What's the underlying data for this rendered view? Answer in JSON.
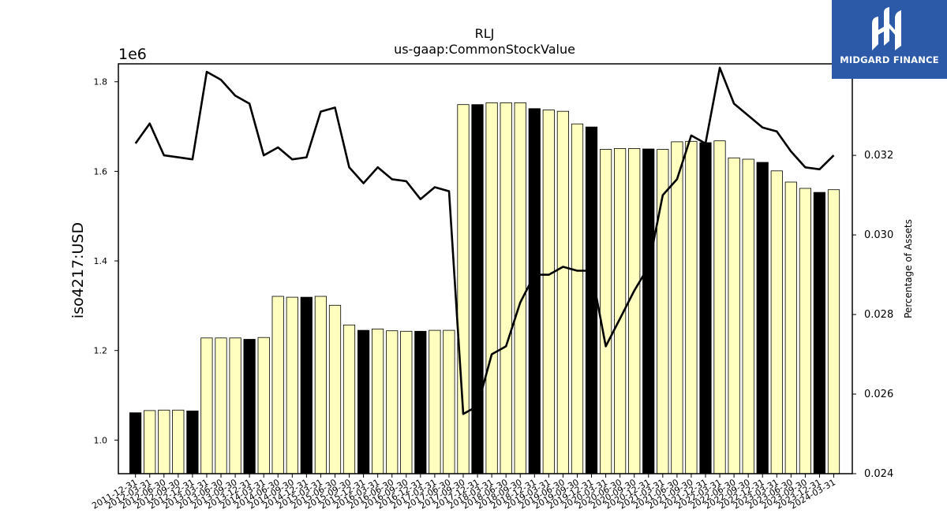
{
  "chart_data": {
    "type": "bar",
    "title": "RLJ",
    "subtitle": "us-gaap:CommonStockValue",
    "ylabel": "iso4217:USD",
    "y_offset_label": "1e6",
    "y2label": "Percentage of Assets",
    "ylim": [
      0.925,
      1.84
    ],
    "y2lim": [
      0.024,
      0.0343
    ],
    "yticks": [
      "1.0",
      "1.2",
      "1.4",
      "1.6",
      "1.8"
    ],
    "y2ticks": [
      "0.024",
      "0.026",
      "0.028",
      "0.030",
      "0.032"
    ],
    "categories": [
      "2011-12-31",
      "2012-03-31",
      "2012-06-30",
      "2012-09-30",
      "2012-12-31",
      "2013-03-31",
      "2013-06-30",
      "2013-09-30",
      "2013-12-31",
      "2014-03-31",
      "2014-06-30",
      "2014-09-30",
      "2014-12-31",
      "2015-03-31",
      "2015-06-30",
      "2015-09-30",
      "2015-12-31",
      "2016-03-31",
      "2016-06-30",
      "2016-09-30",
      "2016-12-31",
      "2017-03-31",
      "2017-06-30",
      "2017-09-30",
      "2017-12-31",
      "2018-03-31",
      "2018-06-30",
      "2018-09-30",
      "2018-12-31",
      "2019-03-31",
      "2019-06-30",
      "2019-09-30",
      "2019-12-31",
      "2020-03-31",
      "2020-06-30",
      "2020-09-30",
      "2020-12-31",
      "2021-03-31",
      "2021-06-30",
      "2021-09-30",
      "2021-12-31",
      "2022-03-31",
      "2022-06-30",
      "2022-09-30",
      "2022-12-31",
      "2023-03-31",
      "2023-06-30",
      "2023-09-30",
      "2023-12-31",
      "2024-03-31"
    ],
    "series": [
      {
        "type": "bar",
        "axis": "left",
        "values": [
          1.061,
          1.066,
          1.067,
          1.067,
          1.065,
          1.228,
          1.228,
          1.228,
          1.225,
          1.229,
          1.321,
          1.319,
          1.319,
          1.321,
          1.301,
          1.257,
          1.245,
          1.248,
          1.244,
          1.243,
          1.243,
          1.245,
          1.245,
          1.749,
          1.749,
          1.753,
          1.753,
          1.753,
          1.74,
          1.737,
          1.734,
          1.706,
          1.699,
          1.649,
          1.651,
          1.651,
          1.65,
          1.649,
          1.666,
          1.667,
          1.664,
          1.668,
          1.63,
          1.627,
          1.62,
          1.601,
          1.576,
          1.562,
          1.553,
          1.559
        ],
        "highlight": [
          true,
          false,
          false,
          false,
          true,
          false,
          false,
          false,
          true,
          false,
          false,
          false,
          true,
          false,
          false,
          false,
          true,
          false,
          false,
          false,
          true,
          false,
          false,
          false,
          true,
          false,
          false,
          false,
          true,
          false,
          false,
          false,
          true,
          false,
          false,
          false,
          true,
          false,
          false,
          false,
          true,
          false,
          false,
          false,
          true,
          false,
          false,
          false,
          true,
          false
        ]
      },
      {
        "type": "line",
        "axis": "right",
        "values": [
          0.0323,
          0.0328,
          0.032,
          0.03195,
          0.0319,
          0.0341,
          0.0339,
          0.0335,
          0.0333,
          0.032,
          0.0322,
          0.0319,
          0.03195,
          0.0331,
          0.0332,
          0.0317,
          0.0313,
          0.0317,
          0.0314,
          0.03135,
          0.0309,
          0.0312,
          0.0311,
          0.0255,
          0.0257,
          0.027,
          0.0272,
          0.0283,
          0.029,
          0.029,
          0.0292,
          0.0291,
          0.0291,
          0.0272,
          0.0279,
          0.0286,
          0.0292,
          0.031,
          0.0314,
          0.0325,
          0.0323,
          0.0342,
          0.0333,
          0.033,
          0.0327,
          0.0326,
          0.0321,
          0.0317,
          0.03165,
          0.032
        ]
      }
    ],
    "colors": {
      "bar": "#ffffc0",
      "bar_highlight": "#000000",
      "line": "#000000",
      "edge": "#000000"
    },
    "grid": false
  },
  "logo": {
    "brand": "MIDGARD FINANCE"
  }
}
